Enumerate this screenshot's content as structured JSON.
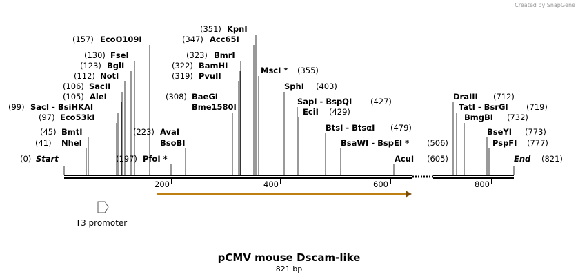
{
  "header": {
    "credit": "Created by SnapGene"
  },
  "sites": [
    {
      "pos": "(0)",
      "name": "Start"
    },
    {
      "pos": "(41)",
      "name": "NheI"
    },
    {
      "pos": "(45)",
      "name": "BmtI"
    },
    {
      "pos": "(97)",
      "name": "Eco53kI"
    },
    {
      "pos": "(99)",
      "name": "SacI - BsiHKAI"
    },
    {
      "pos": "(105)",
      "name": "AleI"
    },
    {
      "pos": "(106)",
      "name": "SacII"
    },
    {
      "pos": "(112)",
      "name": "NotI"
    },
    {
      "pos": "(123)",
      "name": "BglI"
    },
    {
      "pos": "(130)",
      "name": "FseI"
    },
    {
      "pos": "(157)",
      "name": "EcoO109I"
    },
    {
      "pos": "(197)",
      "name": "PfoI *"
    },
    {
      "pos": "(223)",
      "name": "AvaI",
      "name2": "BsoBI"
    },
    {
      "pos": "(308)",
      "name": "BaeGI",
      "name2": "Bme1580I"
    },
    {
      "pos": "(319)",
      "name": "PvuII"
    },
    {
      "pos": "(322)",
      "name": "BamHI"
    },
    {
      "pos": "(323)",
      "name": "BmrI"
    },
    {
      "pos": "(347)",
      "name": "Acc65I"
    },
    {
      "pos": "(351)",
      "name": "KpnI"
    },
    {
      "pos": "(355)",
      "name": "MscI *"
    },
    {
      "pos": "(403)",
      "name": "SphI"
    },
    {
      "pos": "(427)",
      "name": "SapI - BspQI"
    },
    {
      "pos": "(429)",
      "name": "EciI"
    },
    {
      "pos": "(479)",
      "name": "BtsI - BtsαI"
    },
    {
      "pos": "(506)",
      "name": "BsaWI - BspEI *"
    },
    {
      "pos": "(605)",
      "name": "AcuI"
    },
    {
      "pos": "(712)",
      "name": "DraIII"
    },
    {
      "pos": "(719)",
      "name": "TatI - BsrGI"
    },
    {
      "pos": "(732)",
      "name": "BmgBI"
    },
    {
      "pos": "(773)",
      "name": "BseYI"
    },
    {
      "pos": "(777)",
      "name": "PspFI"
    },
    {
      "pos": "(821)",
      "name": "End"
    }
  ],
  "ruler": [
    "200",
    "400",
    "600",
    "800"
  ],
  "features": [
    {
      "label": "T3 promoter"
    }
  ],
  "footer": {
    "title": "pCMV mouse Dscam-like",
    "length": "821 bp"
  }
}
